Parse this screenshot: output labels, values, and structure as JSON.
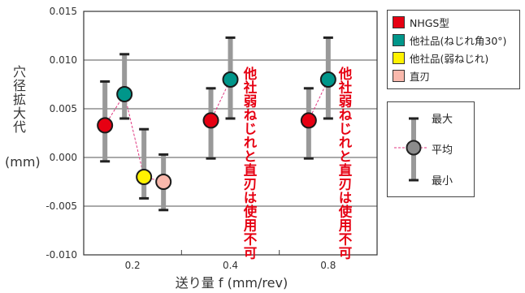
{
  "chart_data": {
    "type": "scatter",
    "error_bars": true,
    "ylabel": "穴径拡大代",
    "ylabel_unit": "(mm)",
    "xlabel": "送り量 f (mm/rev)",
    "ylim": [
      -0.01,
      0.015
    ],
    "yticks": [
      "0.015",
      "0.010",
      "0.005",
      "0.000",
      "-0.005",
      "-0.010"
    ],
    "ytick_values": [
      0.015,
      0.01,
      0.005,
      0.0,
      -0.005,
      -0.01
    ],
    "grid": "horizontal",
    "categories": [
      "0.2",
      "0.4",
      "0.8"
    ],
    "series": [
      {
        "name": "NHGS型",
        "color": "#e60012",
        "values": [
          0.0033,
          0.0038,
          0.0038
        ],
        "max": [
          0.0078,
          0.0071,
          0.0071
        ],
        "min": [
          -0.0004,
          -0.0001,
          -0.0001
        ]
      },
      {
        "name": "他社品(ねじれ角30°)",
        "color": "#00968a",
        "values": [
          0.0065,
          0.008,
          0.008
        ],
        "max": [
          0.0106,
          0.0123,
          0.0123
        ],
        "min": [
          0.004,
          0.004,
          0.004
        ]
      },
      {
        "name": "他社品(弱ねじれ)",
        "color": "#fff200",
        "values": [
          -0.002,
          null,
          null
        ],
        "max": [
          0.0029,
          null,
          null
        ],
        "min": [
          -0.0042,
          null,
          null
        ]
      },
      {
        "name": "直刃",
        "color": "#f9b8ac",
        "values": [
          -0.0025,
          null,
          null
        ],
        "max": [
          0.0003,
          null,
          null
        ],
        "min": [
          -0.0054,
          null,
          null
        ]
      }
    ],
    "annotations": [
      "他社弱ねじれと直刃は使用不可",
      "他社弱ねじれと直刃は使用不可"
    ],
    "key": {
      "max_label": "最大",
      "avg_label": "平均",
      "min_label": "最小"
    },
    "legend": "right"
  }
}
